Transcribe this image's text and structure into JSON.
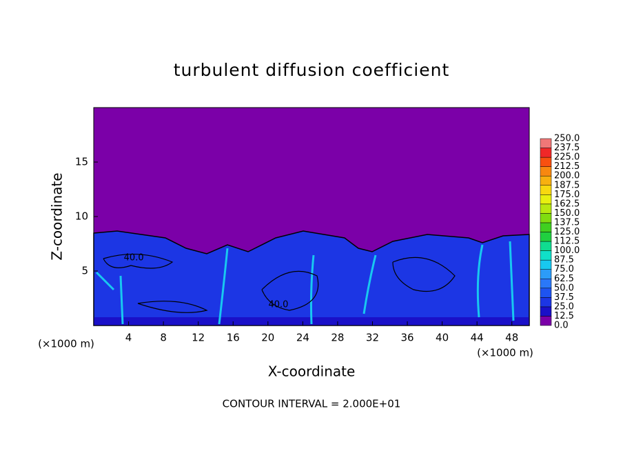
{
  "chart_data": {
    "type": "contour",
    "title": "turbulent diffusion coefficient",
    "x_label": "X-coordinate",
    "y_label": "Z-coordinate",
    "x_unit_label": "(×1000 m)",
    "y_unit_label": "(×1000 m)",
    "xlim": [
      0,
      50
    ],
    "xticks": [
      4,
      8,
      12,
      16,
      20,
      24,
      28,
      32,
      36,
      40,
      44,
      48
    ],
    "ylim": [
      0,
      20
    ],
    "yticks": [
      5,
      10,
      15
    ],
    "colorbar": {
      "levels": [
        {
          "value": 0,
          "label": "0.0"
        },
        12.5,
        {
          "value": 25,
          "label": "25.0"
        },
        37.5,
        {
          "value": 50,
          "label": "50.0"
        },
        62.5,
        {
          "value": 75,
          "label": "75.0"
        },
        87.5,
        {
          "value": 100,
          "label": "100.0"
        },
        112.5,
        {
          "value": 125,
          "label": "125.0"
        },
        137.5,
        {
          "value": 150,
          "label": "150.0"
        },
        162.5,
        {
          "value": 175,
          "label": "175.0"
        },
        187.5,
        {
          "value": 200,
          "label": "200.0"
        },
        212.5,
        {
          "value": 225,
          "label": "225.0"
        },
        237.5,
        {
          "value": 250,
          "label": "250.0"
        }
      ],
      "colors": [
        "#7b00a8",
        "#1a10c8",
        "#1c36e4",
        "#1e54f0",
        "#2a78f8",
        "#2c9cf8",
        "#18c8f0",
        "#10e0c8",
        "#10dc90",
        "#20d040",
        "#40d020",
        "#80dc10",
        "#b8e810",
        "#e8f010",
        "#f8d810",
        "#f8b010",
        "#f88810",
        "#f85010",
        "#f02828",
        "#f07878"
      ]
    },
    "contour_labels": [
      {
        "text": "40.0",
        "x": 4.6,
        "y": 6.2
      },
      {
        "text": "40.0",
        "x": 21.2,
        "y": 1.9
      }
    ],
    "contour_interval_label": "CONTOUR INTERVAL = 2.000E+01"
  }
}
